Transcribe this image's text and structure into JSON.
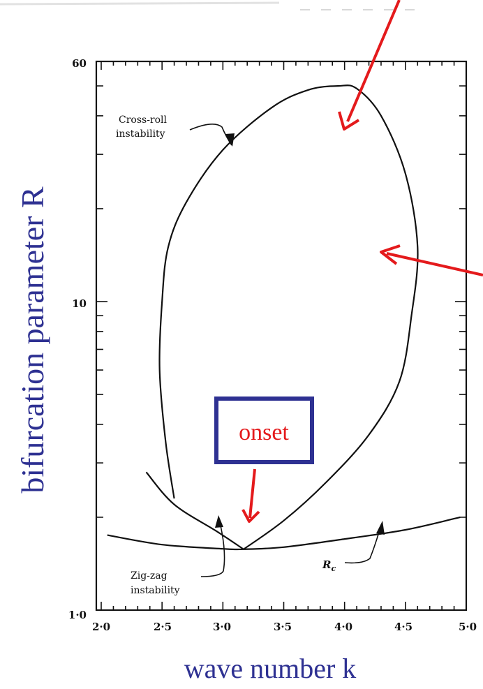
{
  "chart_data": {
    "type": "line",
    "xlabel": "wave number k",
    "ylabel": "bifurcation parameter R",
    "xlim": [
      2.0,
      5.0
    ],
    "ylim": [
      1.0,
      60
    ],
    "yscale": "log",
    "x_ticks": [
      "2·0",
      "2·5",
      "3·0",
      "3·5",
      "4·0",
      "4·5",
      "5·0"
    ],
    "y_ticks": [
      "1·0",
      "10",
      "60"
    ],
    "grid": false,
    "series": [
      {
        "name": "R",
        "label": "R",
        "subscript": "c",
        "points": [
          [
            2.05,
            1.75
          ],
          [
            2.5,
            1.63
          ],
          [
            3.0,
            1.58
          ],
          [
            3.17,
            1.575
          ],
          [
            3.5,
            1.6
          ],
          [
            4.0,
            1.7
          ],
          [
            4.5,
            1.82
          ],
          [
            4.95,
            2.0
          ]
        ]
      },
      {
        "label_lines": [
          "Cross-roll",
          "instability"
        ],
        "points": [
          [
            3.17,
            1.575
          ],
          [
            3.5,
            1.95
          ],
          [
            3.85,
            2.6
          ],
          [
            4.2,
            3.7
          ],
          [
            4.45,
            5.5
          ],
          [
            4.55,
            9.0
          ],
          [
            4.6,
            15.0
          ],
          [
            4.5,
            26.0
          ],
          [
            4.3,
            40.0
          ],
          [
            4.1,
            49.0
          ],
          [
            3.95,
            50.0
          ],
          [
            3.7,
            48.5
          ],
          [
            3.4,
            42.5
          ],
          [
            3.0,
            31.0
          ],
          [
            2.7,
            21.0
          ],
          [
            2.55,
            15.0
          ],
          [
            2.5,
            10.0
          ],
          [
            2.48,
            6.0
          ],
          [
            2.53,
            3.5
          ],
          [
            2.6,
            2.3
          ]
        ]
      },
      {
        "label_lines": [
          "Zig-zag",
          "instability"
        ],
        "points": [
          [
            2.37,
            2.8
          ],
          [
            2.6,
            2.2
          ],
          [
            2.95,
            1.8
          ],
          [
            3.17,
            1.575
          ]
        ]
      }
    ],
    "annotations": [
      {
        "text": "onset",
        "style": "boxed-red-text",
        "arrow_to": [
          3.16,
          1.68
        ]
      }
    ]
  }
}
